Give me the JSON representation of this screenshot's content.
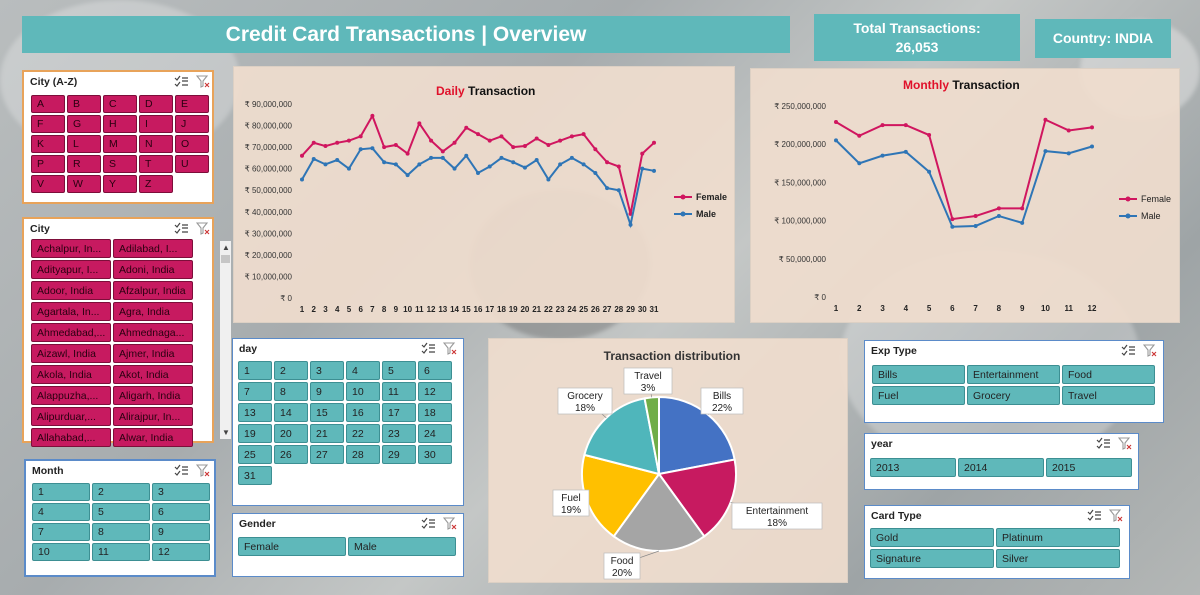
{
  "header": {
    "title": "Credit Card Transactions | Overview",
    "total_label": "Total Transactions:",
    "total_value": "26,053",
    "country_label": "Country:  INDIA"
  },
  "colors": {
    "teal": "#5fb8ba",
    "crimson": "#c71a60",
    "female_line": "#d0165f",
    "male_line": "#2e75b6"
  },
  "slicers": {
    "city_az": {
      "title": "City (A-Z)",
      "items": [
        "A",
        "B",
        "C",
        "D",
        "E",
        "F",
        "G",
        "H",
        "I",
        "J",
        "K",
        "L",
        "M",
        "N",
        "O",
        "P",
        "R",
        "S",
        "T",
        "U",
        "V",
        "W",
        "Y",
        "Z"
      ]
    },
    "city": {
      "title": "City",
      "items": [
        "Achalpur, In...",
        "Adilabad, I...",
        "Adityapur, I...",
        "Adoni, India",
        "Adoor, India",
        "Afzalpur, India",
        "Agartala, In...",
        "Agra, India",
        "Ahmedabad,...",
        "Ahmednaga...",
        "Aizawl, India",
        "Ajmer, India",
        "Akola, India",
        "Akot, India",
        "Alappuzha,...",
        "Aligarh, India",
        "Alipurduar,...",
        "Alirajpur, In...",
        "Allahabad,...",
        "Alwar, India"
      ]
    },
    "month": {
      "title": "Month",
      "items": [
        "1",
        "2",
        "3",
        "4",
        "5",
        "6",
        "7",
        "8",
        "9",
        "10",
        "11",
        "12"
      ]
    },
    "day": {
      "title": "day",
      "items": [
        "1",
        "2",
        "3",
        "4",
        "5",
        "6",
        "7",
        "8",
        "9",
        "10",
        "11",
        "12",
        "13",
        "14",
        "15",
        "16",
        "17",
        "18",
        "19",
        "20",
        "21",
        "22",
        "23",
        "24",
        "25",
        "26",
        "27",
        "28",
        "29",
        "30",
        "31"
      ]
    },
    "gender": {
      "title": "Gender",
      "items": [
        "Female",
        "Male"
      ]
    },
    "exp_type": {
      "title": "Exp Type",
      "items": [
        "Bills",
        "Entertainment",
        "Food",
        "Fuel",
        "Grocery",
        "Travel"
      ]
    },
    "year": {
      "title": "year",
      "items": [
        "2013",
        "2014",
        "2015"
      ]
    },
    "card_type": {
      "title": "Card Type",
      "items": [
        "Gold",
        "Platinum",
        "Signature",
        "Silver"
      ]
    }
  },
  "chart_data": [
    {
      "type": "line",
      "title_highlight": "Daily",
      "title_rest": " Transaction",
      "x": [
        1,
        2,
        3,
        4,
        5,
        6,
        7,
        8,
        9,
        10,
        11,
        12,
        13,
        14,
        15,
        16,
        17,
        18,
        19,
        20,
        21,
        22,
        23,
        24,
        25,
        26,
        27,
        28,
        29,
        30,
        31
      ],
      "y_ticks": [
        "₹ 0",
        "₹ 10,000,000",
        "₹ 20,000,000",
        "₹ 30,000,000",
        "₹ 40,000,000",
        "₹ 50,000,000",
        "₹ 60,000,000",
        "₹ 70,000,000",
        "₹ 80,000,000",
        "₹ 90,000,000"
      ],
      "ylim": [
        0,
        90000000
      ],
      "series": [
        {
          "name": "Female",
          "values": [
            66000000,
            72000000,
            70500000,
            72000000,
            73000000,
            75000000,
            84500000,
            70000000,
            71000000,
            67000000,
            81000000,
            73000000,
            68000000,
            72000000,
            79000000,
            76000000,
            73000000,
            75000000,
            70000000,
            70500000,
            74000000,
            71000000,
            73000000,
            75000000,
            76000000,
            69000000,
            63000000,
            61000000,
            39000000,
            67000000,
            72000000
          ]
        },
        {
          "name": "Male",
          "values": [
            55000000,
            64500000,
            62000000,
            64000000,
            60000000,
            69000000,
            69500000,
            63000000,
            62000000,
            57000000,
            62000000,
            65000000,
            65000000,
            60000000,
            66000000,
            58000000,
            61000000,
            65000000,
            63000000,
            60500000,
            64000000,
            55000000,
            62000000,
            65000000,
            62000000,
            58000000,
            51000000,
            50000000,
            34000000,
            60000000,
            59000000
          ]
        }
      ],
      "legend_position": "right"
    },
    {
      "type": "line",
      "title_highlight": "Monthly",
      "title_rest": "  Transaction",
      "x": [
        1,
        2,
        3,
        4,
        5,
        6,
        7,
        8,
        9,
        10,
        11,
        12
      ],
      "y_ticks": [
        "₹ 0",
        "₹ 50,000,000",
        "₹ 100,000,000",
        "₹ 150,000,000",
        "₹ 200,000,000",
        "₹ 250,000,000"
      ],
      "ylim": [
        0,
        250000000
      ],
      "series": [
        {
          "name": "Female",
          "values": [
            229000000,
            211000000,
            225000000,
            225000000,
            212000000,
            102000000,
            106000000,
            116000000,
            116000000,
            232000000,
            218000000,
            222000000
          ]
        },
        {
          "name": "Male",
          "values": [
            205000000,
            175000000,
            185000000,
            190000000,
            164000000,
            92000000,
            93000000,
            106000000,
            97000000,
            191000000,
            188000000,
            197000000
          ]
        }
      ],
      "legend_position": "right"
    },
    {
      "type": "pie",
      "title": "Transaction distribution",
      "slices": [
        {
          "label": "Bills",
          "pct": "22%",
          "value": 22,
          "color": "#4472c4"
        },
        {
          "label": "Entertainment",
          "pct": "18%",
          "value": 18,
          "color": "#c71a60"
        },
        {
          "label": "Food",
          "pct": "20%",
          "value": 20,
          "color": "#a5a5a5"
        },
        {
          "label": "Fuel",
          "pct": "19%",
          "value": 19,
          "color": "#ffc000"
        },
        {
          "label": "Grocery",
          "pct": "18%",
          "value": 18,
          "color": "#4fb6bb"
        },
        {
          "label": "Travel",
          "pct": "3%",
          "value": 3,
          "color": "#70ad47"
        }
      ]
    }
  ]
}
